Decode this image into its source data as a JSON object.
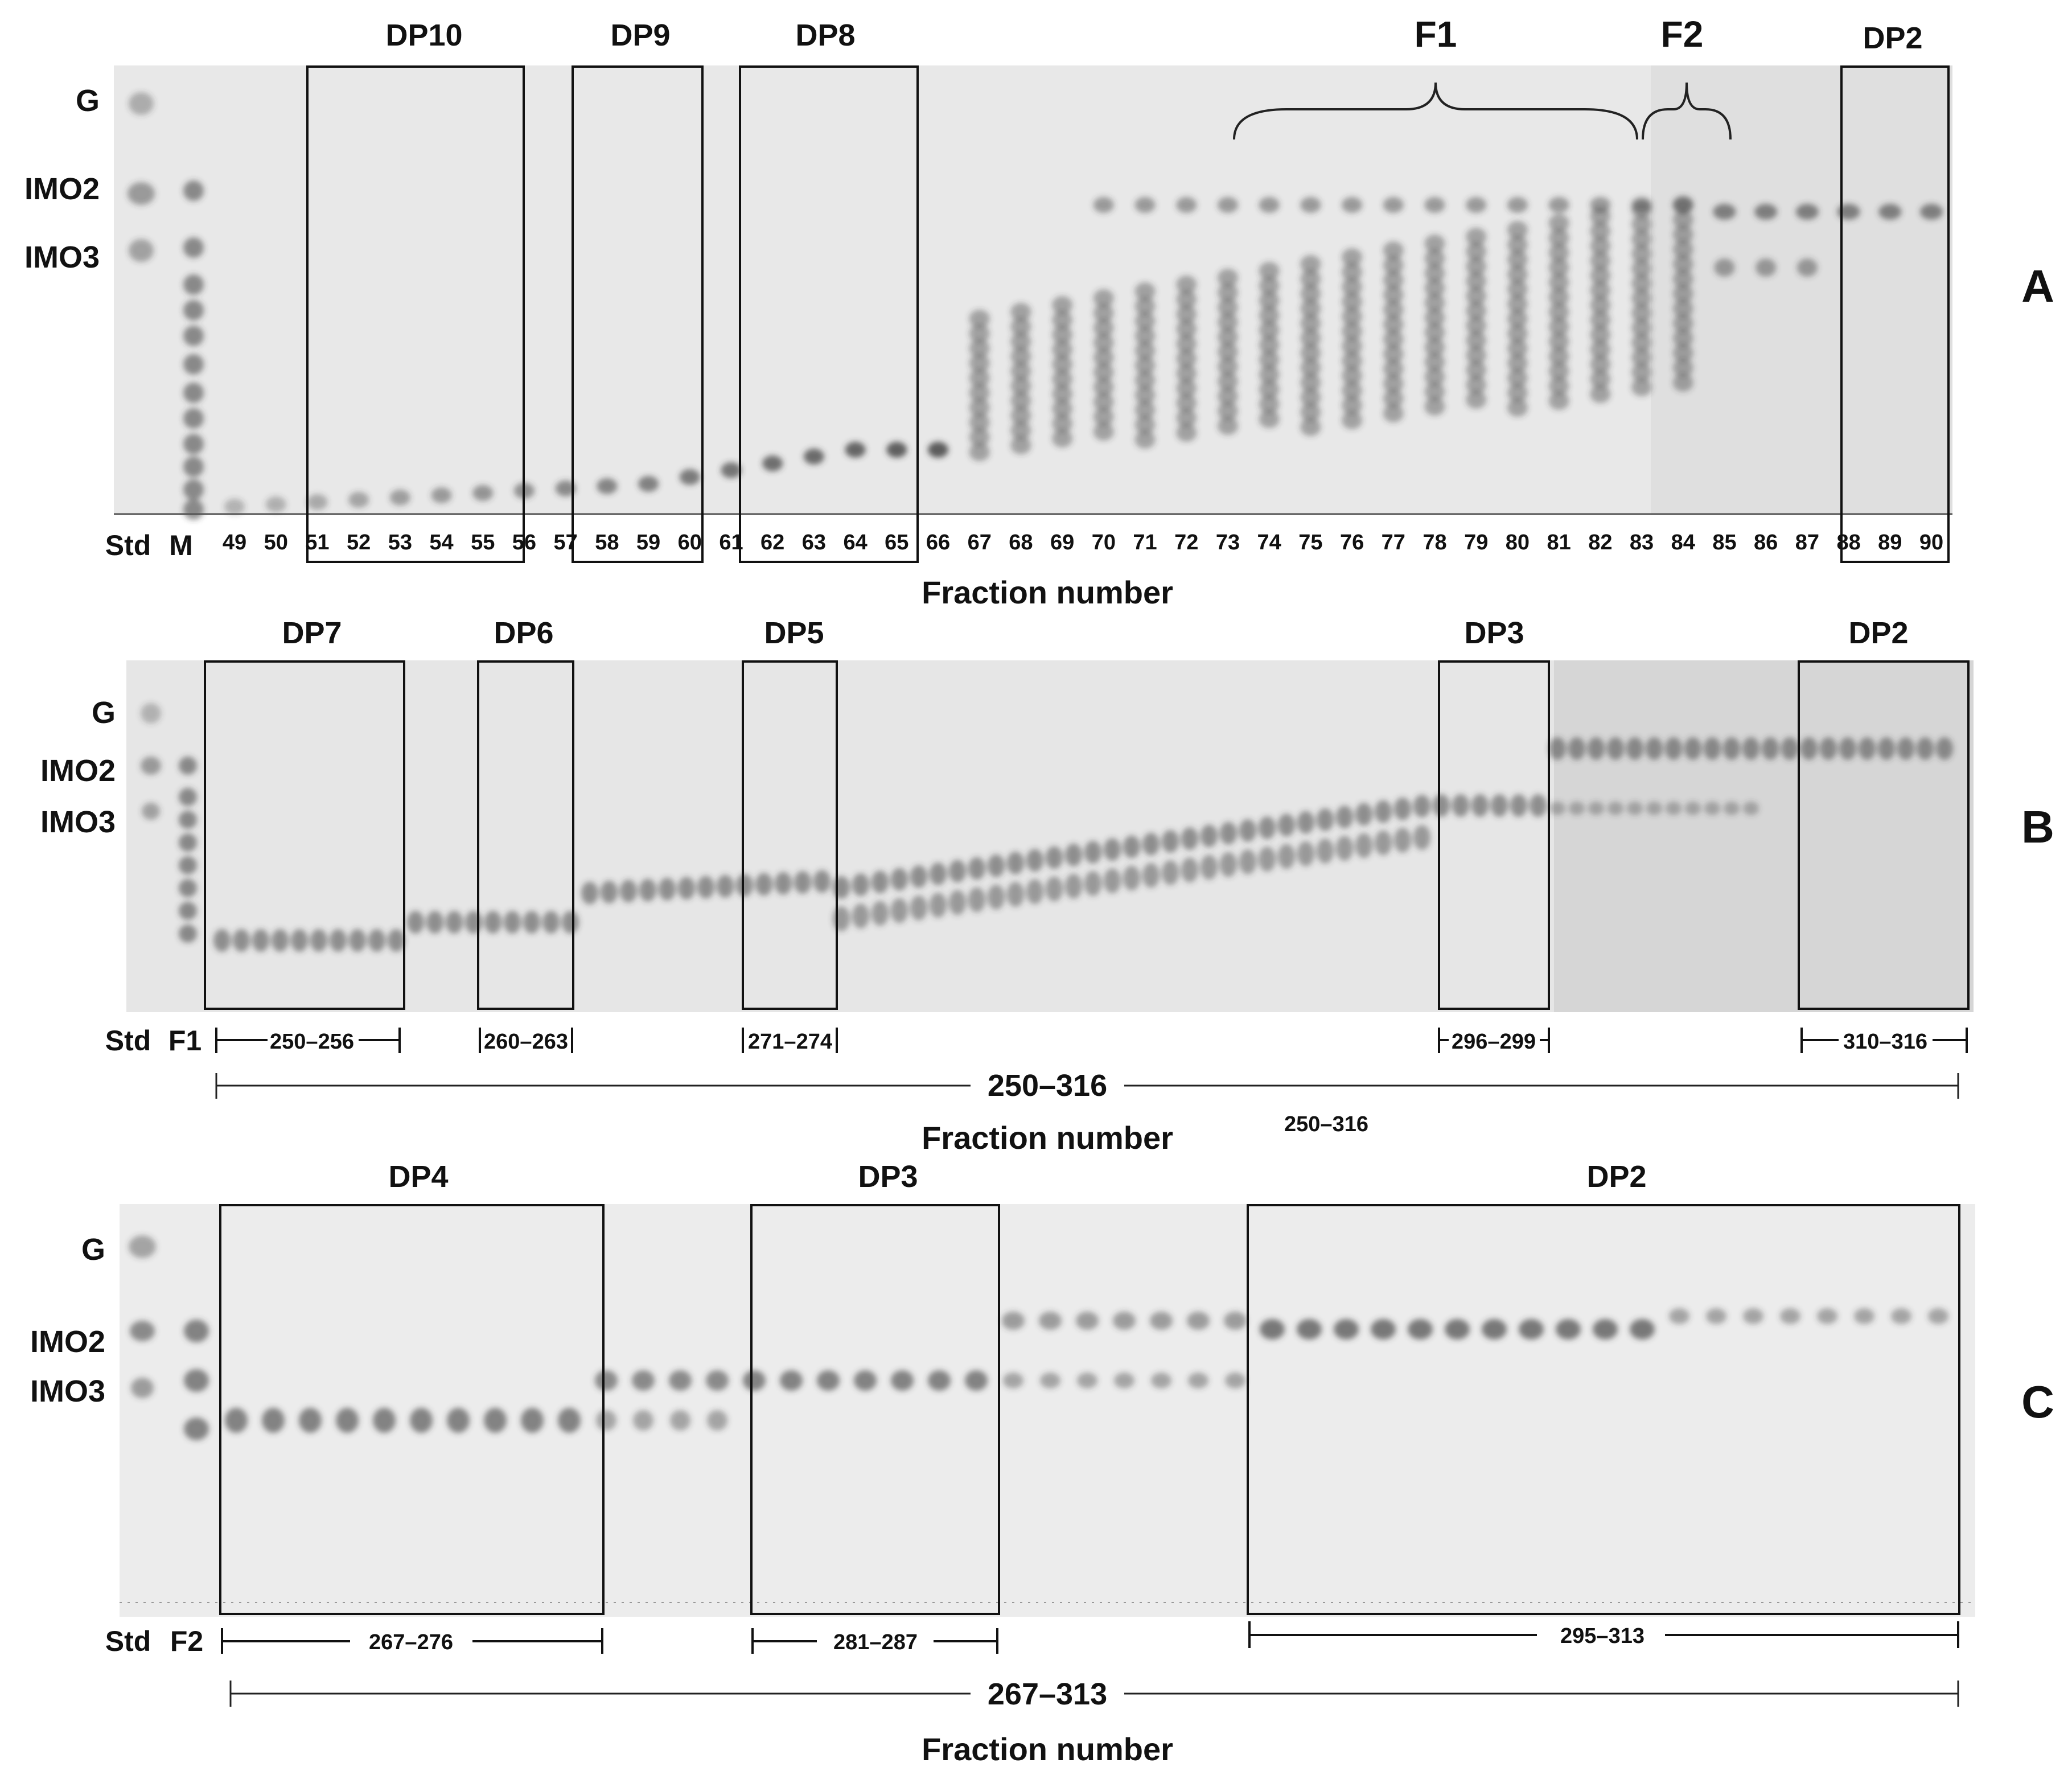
{
  "panels": [
    {
      "id": "A",
      "letter": "A",
      "std_labels": [
        "G",
        "IMO2",
        "IMO3"
      ],
      "lane_labels": [
        "Std",
        "M"
      ],
      "fractions": [
        "49",
        "50",
        "51",
        "52",
        "53",
        "54",
        "55",
        "56",
        "57",
        "58",
        "59",
        "60",
        "61",
        "62",
        "63",
        "64",
        "65",
        "66",
        "67",
        "68",
        "69",
        "70",
        "71",
        "72",
        "73",
        "74",
        "75",
        "76",
        "77",
        "78",
        "79",
        "80",
        "81",
        "82",
        "83",
        "84",
        "85",
        "86",
        "87",
        "88",
        "89",
        "90"
      ],
      "boxes": [
        "DP10",
        "DP9",
        "DP8",
        "DP2"
      ],
      "braces": [
        "F1",
        "F2"
      ],
      "xlabel": "Fraction number"
    },
    {
      "id": "B",
      "letter": "B",
      "std_labels": [
        "G",
        "IMO2",
        "IMO3"
      ],
      "lane_labels": [
        "Std",
        "F1"
      ],
      "boxes": [
        "DP7",
        "DP6",
        "DP5",
        "DP3",
        "DP2"
      ],
      "ranges": [
        "250–256",
        "260–263",
        "271–274",
        "296–299",
        "310–316"
      ],
      "overall_range": "250–316",
      "xlabel": "Fraction number",
      "extra_note": "250–316"
    },
    {
      "id": "C",
      "letter": "C",
      "std_labels": [
        "G",
        "IMO2",
        "IMO3"
      ],
      "lane_labels": [
        "Std",
        "F2"
      ],
      "boxes": [
        "DP4",
        "DP3",
        "DP2"
      ],
      "ranges": [
        "267–276",
        "281–287",
        "295–313"
      ],
      "overall_range": "267–313",
      "xlabel": "Fraction number"
    }
  ],
  "colors": {
    "plate": "#e9e9e9",
    "spot": "#3a3a3a",
    "box": "#111111"
  }
}
